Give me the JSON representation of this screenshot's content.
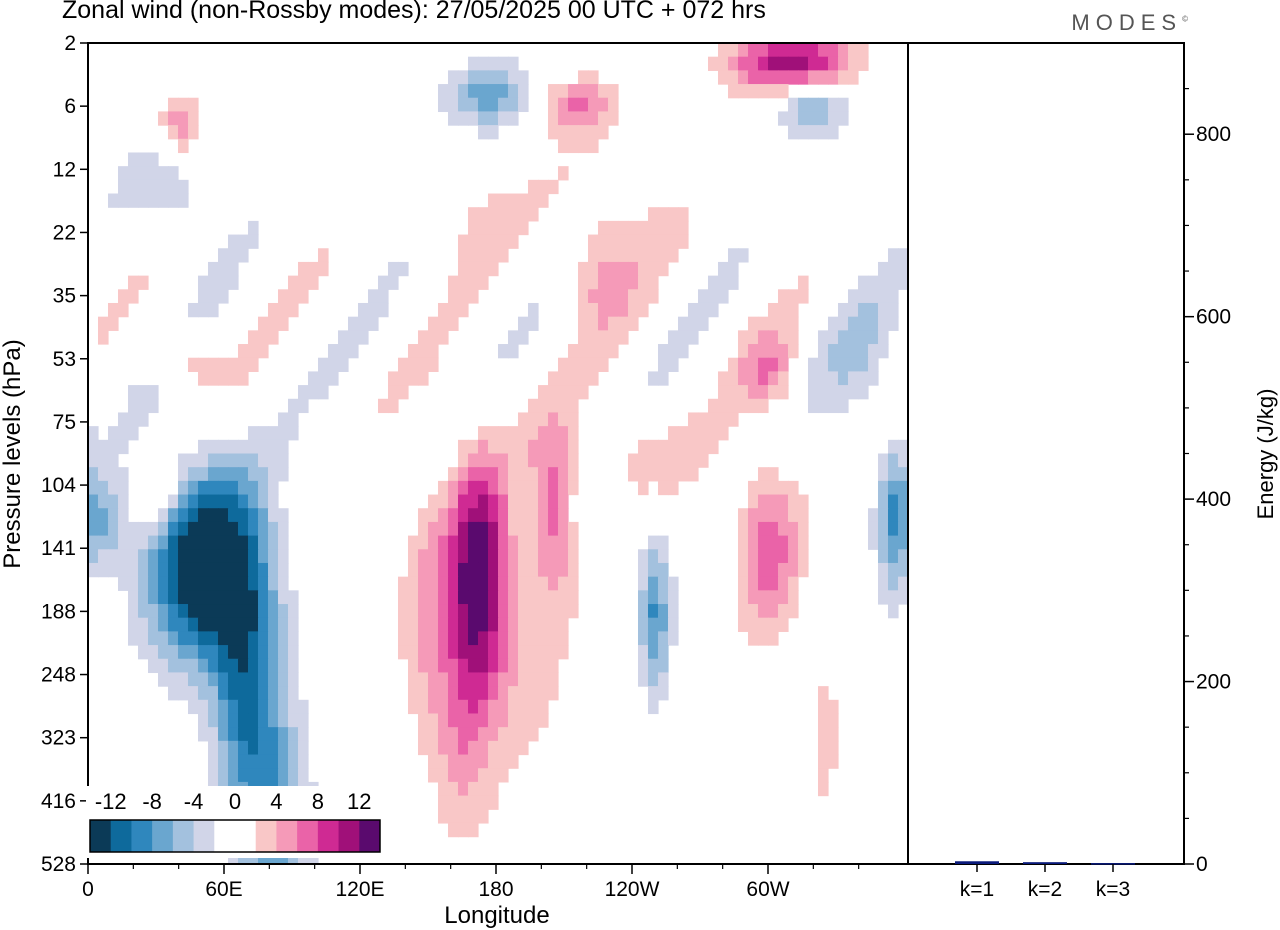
{
  "header": {
    "title": "Zonal wind (non-Rossby modes):  27/05/2025  00 UTC  + 072 hrs",
    "brand": "MODES",
    "brand_mark": "©"
  },
  "chart_data": [
    {
      "type": "heatmap",
      "xlabel": "Longitude",
      "ylabel": "Pressure levels (hPa)",
      "x_tick_labels": [
        "0",
        "60E",
        "120E",
        "180",
        "120W",
        "60W"
      ],
      "y_tick_labels": [
        "2",
        "6",
        "12",
        "22",
        "35",
        "53",
        "75",
        "104",
        "141",
        "188",
        "248",
        "323",
        "416",
        "528"
      ],
      "colorbar": {
        "labels": [
          "-12",
          "-8",
          "-4",
          "0",
          "4",
          "8",
          "12"
        ],
        "colors": [
          "#0b3a57",
          "#0e6a9c",
          "#2f87bd",
          "#6aa6cf",
          "#a3c1de",
          "#d1d5e8",
          "#ffffff",
          "#ffffff",
          "#f9c7c7",
          "#f59ab8",
          "#ea63a8",
          "#cf2a93",
          "#a01079",
          "#5a0a6e"
        ]
      },
      "features": [
        {
          "name": "negative-core",
          "lon": 45,
          "level": "141",
          "value": -14
        },
        {
          "name": "positive-core",
          "lon": 172,
          "level": "141",
          "value": 10
        },
        {
          "name": "positive-core-east",
          "lon": 292,
          "level": "141",
          "value": 6
        },
        {
          "name": "upper-positive",
          "lon": 305,
          "level": "2",
          "value": 10
        }
      ]
    },
    {
      "type": "bar",
      "ylabel": "Energy (J/kg)",
      "categories": [
        "k=1",
        "k=2",
        "k=3"
      ],
      "values": [
        3,
        2,
        1
      ],
      "ylim": [
        0,
        900
      ],
      "y_tick_labels": [
        "0",
        "200",
        "400",
        "600",
        "800"
      ],
      "bar_color": "#0a1a7a"
    }
  ]
}
